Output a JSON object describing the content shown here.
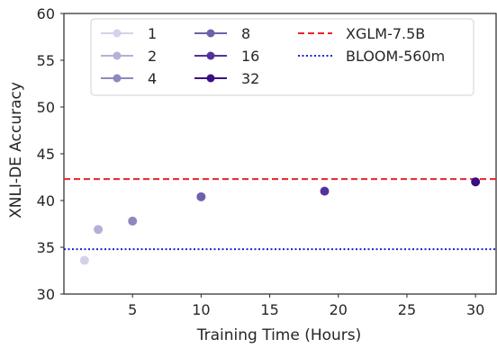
{
  "chart_data": {
    "type": "scatter",
    "title": "",
    "xlabel": "Training Time (Hours)",
    "ylabel": "XNLI-DE Accuracy",
    "xlim": [
      0,
      31.5
    ],
    "ylim": [
      30,
      60
    ],
    "xticks": [
      5,
      10,
      15,
      20,
      25,
      30
    ],
    "yticks": [
      30,
      35,
      40,
      45,
      50,
      55,
      60
    ],
    "grid": false,
    "legend_position": "top",
    "series": [
      {
        "name": "1",
        "color": "#d4d2ea",
        "x": [
          1.5
        ],
        "y": [
          33.6
        ]
      },
      {
        "name": "2",
        "color": "#b3b1d8",
        "x": [
          2.5
        ],
        "y": [
          36.9
        ]
      },
      {
        "name": "4",
        "color": "#8d89c0",
        "x": [
          5.0
        ],
        "y": [
          37.8
        ]
      },
      {
        "name": "8",
        "color": "#6b62ab",
        "x": [
          10.0
        ],
        "y": [
          40.4
        ]
      },
      {
        "name": "16",
        "color": "#533399",
        "x": [
          19.0
        ],
        "y": [
          41.0
        ]
      },
      {
        "name": "32",
        "color": "#3c0e7f",
        "x": [
          30.0
        ],
        "y": [
          42.0
        ]
      }
    ],
    "reference_lines": [
      {
        "name": "XGLM-7.5B",
        "y": 42.3,
        "color": "#e8232b",
        "style": "dashed"
      },
      {
        "name": "BLOOM-560m",
        "y": 34.8,
        "color": "#1f1fd6",
        "style": "dotted"
      }
    ]
  }
}
